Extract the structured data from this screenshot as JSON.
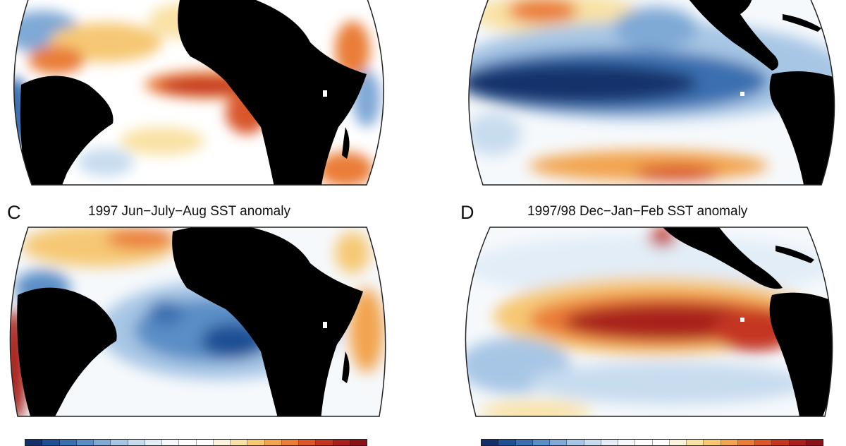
{
  "panels": [
    {
      "id": "A",
      "letter": "",
      "title": ""
    },
    {
      "id": "B",
      "letter": "",
      "title": ""
    },
    {
      "id": "C",
      "letter": "C",
      "title": "1997 Jun−July−Aug SST anomaly"
    },
    {
      "id": "D",
      "letter": "D",
      "title": "1997/98 Dec−Jan−Feb SST anomaly"
    }
  ],
  "colorbar": {
    "colors": [
      "#14306b",
      "#1f4f94",
      "#3a6fb0",
      "#5a8ec6",
      "#7fa9d6",
      "#a7c6e5",
      "#c8dcef",
      "#e2edf7",
      "#f6f9fc",
      "#ffffff",
      "#ffffff",
      "#fbf3dc",
      "#f9e2a5",
      "#f6c874",
      "#f2a450",
      "#ea7d37",
      "#d9572a",
      "#c43522",
      "#a8201c",
      "#8a1218"
    ]
  },
  "colors": {
    "land": "#000000",
    "ocean": "#ffffff",
    "warm": "#c22a1f",
    "cool": "#1d4f93"
  }
}
